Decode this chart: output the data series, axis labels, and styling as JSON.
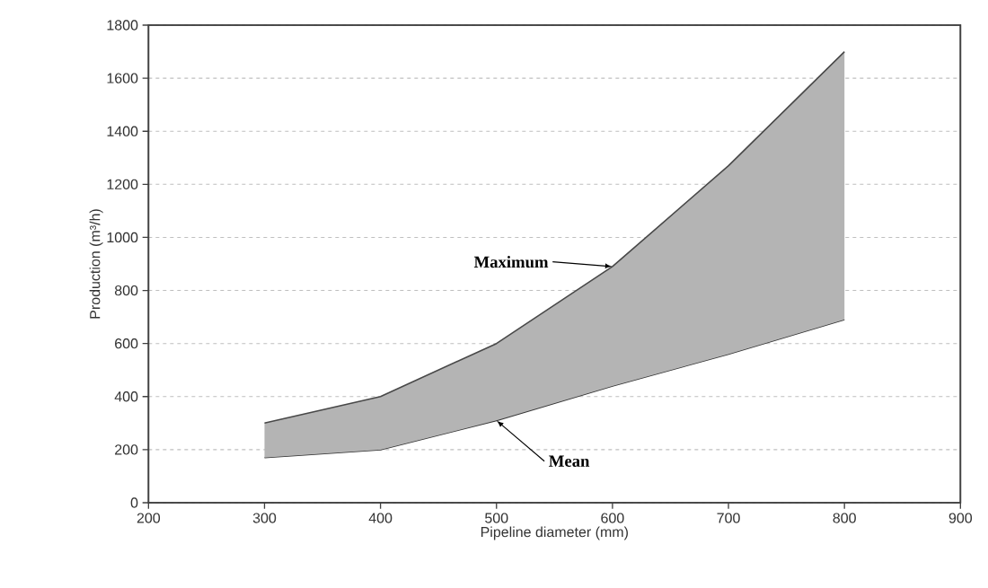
{
  "chart_data": {
    "type": "line",
    "xlabel": "Pipeline diameter (mm)",
    "ylabel": "Production   (m³/h)",
    "x": [
      300,
      400,
      500,
      600,
      700,
      800
    ],
    "series": [
      {
        "name": "Mean",
        "color": "#333333",
        "values": [
          170,
          200,
          310,
          440,
          560,
          690
        ]
      },
      {
        "name": "Maximum",
        "type": "area",
        "color": "#b4b4b4",
        "values": [
          300,
          400,
          600,
          890,
          1270,
          1700
        ]
      }
    ],
    "xlim": [
      200,
      900
    ],
    "xticks": [
      200,
      300,
      400,
      500,
      600,
      700,
      800,
      900
    ],
    "ylim": [
      0,
      1800
    ],
    "yticks": [
      0,
      200,
      400,
      600,
      800,
      1000,
      1200,
      1400,
      1600,
      1800
    ],
    "grid": "y"
  }
}
